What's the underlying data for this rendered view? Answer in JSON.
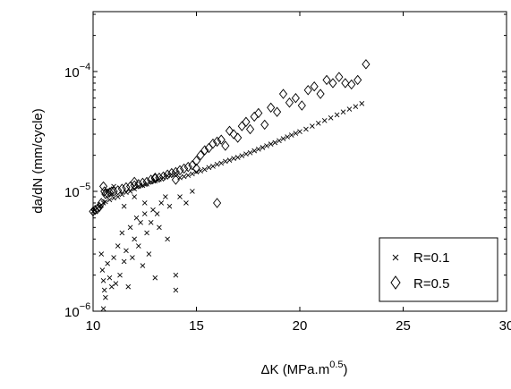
{
  "chart_data": {
    "type": "scatter",
    "title": "",
    "xlabel": "ΔK (MPa.m",
    "xlabel_superscript": "0.5",
    "xlabel_close": ")",
    "ylabel": "da/dN (mm/cycle)",
    "xlim": [
      10,
      30
    ],
    "ylim": [
      1e-06,
      0.000316
    ],
    "y_scale": "log",
    "grid": false,
    "legend_placement": "bottom-right",
    "x_ticks": [
      10,
      15,
      20,
      25,
      30
    ],
    "x_tick_labels": [
      "10",
      "15",
      "20",
      "25",
      "30"
    ],
    "y_ticks": [
      1e-06,
      1e-05,
      0.0001
    ],
    "y_tick_labels": [
      {
        "base": "10",
        "exp": "−6"
      },
      {
        "base": "10",
        "exp": "−5"
      },
      {
        "base": "10",
        "exp": "−4"
      }
    ],
    "series": [
      {
        "name": "R=0.1",
        "marker": "x",
        "color": "#000000",
        "points": [
          [
            10.0,
            6.8e-06
          ],
          [
            10.1,
            7e-06
          ],
          [
            10.2,
            7.2e-06
          ],
          [
            10.3,
            7.5e-06
          ],
          [
            10.4,
            7.7e-06
          ],
          [
            10.5,
            8e-06
          ],
          [
            10.6,
            8.2e-06
          ],
          [
            10.8,
            8.5e-06
          ],
          [
            11.0,
            8.8e-06
          ],
          [
            11.2,
            9e-06
          ],
          [
            11.4,
            9.4e-06
          ],
          [
            11.6,
            9.8e-06
          ],
          [
            11.8,
            1e-05
          ],
          [
            12.0,
            1.05e-05
          ],
          [
            12.2,
            1.1e-05
          ],
          [
            12.4,
            1.12e-05
          ],
          [
            12.6,
            1.15e-05
          ],
          [
            12.8,
            1.2e-05
          ],
          [
            13.0,
            1.22e-05
          ],
          [
            13.2,
            1.26e-05
          ],
          [
            13.4,
            1.3e-05
          ],
          [
            13.6,
            1.35e-05
          ],
          [
            13.8,
            1.38e-05
          ],
          [
            14.0,
            1.42e-05
          ],
          [
            14.2,
            1.3e-05
          ],
          [
            14.4,
            1.33e-05
          ],
          [
            14.6,
            1.36e-05
          ],
          [
            14.8,
            1.4e-05
          ],
          [
            15.0,
            1.45e-05
          ],
          [
            15.2,
            1.48e-05
          ],
          [
            15.4,
            1.52e-05
          ],
          [
            15.6,
            1.58e-05
          ],
          [
            15.8,
            1.62e-05
          ],
          [
            16.0,
            1.68e-05
          ],
          [
            16.2,
            1.72e-05
          ],
          [
            16.4,
            1.78e-05
          ],
          [
            16.6,
            1.82e-05
          ],
          [
            16.8,
            1.88e-05
          ],
          [
            17.0,
            1.92e-05
          ],
          [
            17.2,
            1.98e-05
          ],
          [
            17.4,
            2.05e-05
          ],
          [
            17.6,
            2.1e-05
          ],
          [
            17.8,
            2.18e-05
          ],
          [
            18.0,
            2.25e-05
          ],
          [
            18.2,
            2.32e-05
          ],
          [
            18.4,
            2.4e-05
          ],
          [
            18.6,
            2.48e-05
          ],
          [
            18.8,
            2.55e-05
          ],
          [
            19.0,
            2.65e-05
          ],
          [
            19.2,
            2.75e-05
          ],
          [
            19.4,
            2.85e-05
          ],
          [
            19.6,
            2.95e-05
          ],
          [
            19.8,
            3.05e-05
          ],
          [
            20.0,
            3.15e-05
          ],
          [
            20.3,
            3.3e-05
          ],
          [
            20.6,
            3.5e-05
          ],
          [
            20.9,
            3.7e-05
          ],
          [
            21.2,
            3.9e-05
          ],
          [
            21.5,
            4.1e-05
          ],
          [
            21.8,
            4.35e-05
          ],
          [
            22.1,
            4.6e-05
          ],
          [
            22.4,
            4.85e-05
          ],
          [
            22.7,
            5.1e-05
          ],
          [
            23.0,
            5.4e-05
          ],
          [
            10.4,
            3e-06
          ],
          [
            10.45,
            2.2e-06
          ],
          [
            10.5,
            1.8e-06
          ],
          [
            10.55,
            1.5e-06
          ],
          [
            10.6,
            1.3e-06
          ],
          [
            10.5,
            1.05e-06
          ],
          [
            10.7,
            2.5e-06
          ],
          [
            10.8,
            1.9e-06
          ],
          [
            10.9,
            1.6e-06
          ],
          [
            11.0,
            2.8e-06
          ],
          [
            11.1,
            1.7e-06
          ],
          [
            11.2,
            3.5e-06
          ],
          [
            11.3,
            2e-06
          ],
          [
            11.4,
            4.5e-06
          ],
          [
            11.5,
            2.6e-06
          ],
          [
            11.6,
            3.2e-06
          ],
          [
            11.7,
            1.6e-06
          ],
          [
            11.8,
            5e-06
          ],
          [
            11.9,
            2.8e-06
          ],
          [
            12.0,
            4e-06
          ],
          [
            12.1,
            6e-06
          ],
          [
            12.2,
            3.5e-06
          ],
          [
            12.3,
            5.5e-06
          ],
          [
            12.4,
            2.4e-06
          ],
          [
            12.5,
            6.5e-06
          ],
          [
            12.6,
            4.5e-06
          ],
          [
            12.7,
            3e-06
          ],
          [
            12.8,
            5.5e-06
          ],
          [
            12.9,
            7e-06
          ],
          [
            13.0,
            1.9e-06
          ],
          [
            13.1,
            6.5e-06
          ],
          [
            13.2,
            5e-06
          ],
          [
            13.3,
            8e-06
          ],
          [
            13.5,
            9e-06
          ],
          [
            13.7,
            7.5e-06
          ],
          [
            14.0,
            1.5e-06
          ],
          [
            14.0,
            2e-06
          ],
          [
            14.2,
            9e-06
          ],
          [
            14.5,
            8e-06
          ],
          [
            14.8,
            1e-05
          ],
          [
            11.0,
            1.1e-05
          ],
          [
            12.0,
            9e-06
          ],
          [
            12.5,
            8e-06
          ],
          [
            11.5,
            7.5e-06
          ],
          [
            13.6,
            4e-06
          ]
        ]
      },
      {
        "name": "R=0.5",
        "marker": "diamond",
        "color": "#000000",
        "points": [
          [
            10.0,
            6.8e-06
          ],
          [
            10.1,
            7e-06
          ],
          [
            10.2,
            7.1e-06
          ],
          [
            10.3,
            7.4e-06
          ],
          [
            10.4,
            8e-06
          ],
          [
            10.5,
            1.1e-05
          ],
          [
            10.55,
            1e-05
          ],
          [
            10.6,
            9.5e-06
          ],
          [
            10.7,
            9.6e-06
          ],
          [
            10.8,
            9.8e-06
          ],
          [
            10.9,
            1e-05
          ],
          [
            11.0,
            1e-05
          ],
          [
            11.2,
            1.02e-05
          ],
          [
            11.4,
            1.05e-05
          ],
          [
            11.6,
            1.08e-05
          ],
          [
            11.8,
            1.1e-05
          ],
          [
            12.0,
            1.12e-05
          ],
          [
            12.2,
            1.15e-05
          ],
          [
            12.4,
            1.18e-05
          ],
          [
            12.6,
            1.2e-05
          ],
          [
            12.8,
            1.25e-05
          ],
          [
            13.0,
            1.28e-05
          ],
          [
            13.2,
            1.3e-05
          ],
          [
            13.4,
            1.33e-05
          ],
          [
            13.6,
            1.38e-05
          ],
          [
            13.8,
            1.42e-05
          ],
          [
            14.0,
            1.45e-05
          ],
          [
            14.2,
            1.5e-05
          ],
          [
            14.4,
            1.55e-05
          ],
          [
            14.6,
            1.6e-05
          ],
          [
            14.8,
            1.65e-05
          ],
          [
            15.0,
            1.8e-05
          ],
          [
            15.2,
            2e-05
          ],
          [
            15.4,
            2.2e-05
          ],
          [
            15.6,
            2.3e-05
          ],
          [
            15.8,
            2.5e-05
          ],
          [
            16.0,
            2.6e-05
          ],
          [
            16.2,
            2.7e-05
          ],
          [
            16.4,
            2.4e-05
          ],
          [
            16.6,
            3.2e-05
          ],
          [
            16.8,
            3e-05
          ],
          [
            17.0,
            2.8e-05
          ],
          [
            17.2,
            3.5e-05
          ],
          [
            17.4,
            3.8e-05
          ],
          [
            17.6,
            3.3e-05
          ],
          [
            17.8,
            4.2e-05
          ],
          [
            18.0,
            4.5e-05
          ],
          [
            18.3,
            3.6e-05
          ],
          [
            18.6,
            5e-05
          ],
          [
            18.9,
            4.6e-05
          ],
          [
            19.2,
            6.5e-05
          ],
          [
            19.5,
            5.5e-05
          ],
          [
            19.8,
            6e-05
          ],
          [
            20.1,
            5.2e-05
          ],
          [
            20.4,
            7e-05
          ],
          [
            20.7,
            7.5e-05
          ],
          [
            21.0,
            6.5e-05
          ],
          [
            21.3,
            8.5e-05
          ],
          [
            21.6,
            8e-05
          ],
          [
            21.9,
            9e-05
          ],
          [
            22.2,
            8e-05
          ],
          [
            22.5,
            7.8e-05
          ],
          [
            22.8,
            8.5e-05
          ],
          [
            23.2,
            0.000115
          ],
          [
            16.0,
            8e-06
          ],
          [
            14.0,
            1.25e-05
          ],
          [
            15.0,
            1.55e-05
          ],
          [
            13.0,
            1.3e-05
          ],
          [
            12.0,
            1.2e-05
          ]
        ]
      }
    ]
  }
}
